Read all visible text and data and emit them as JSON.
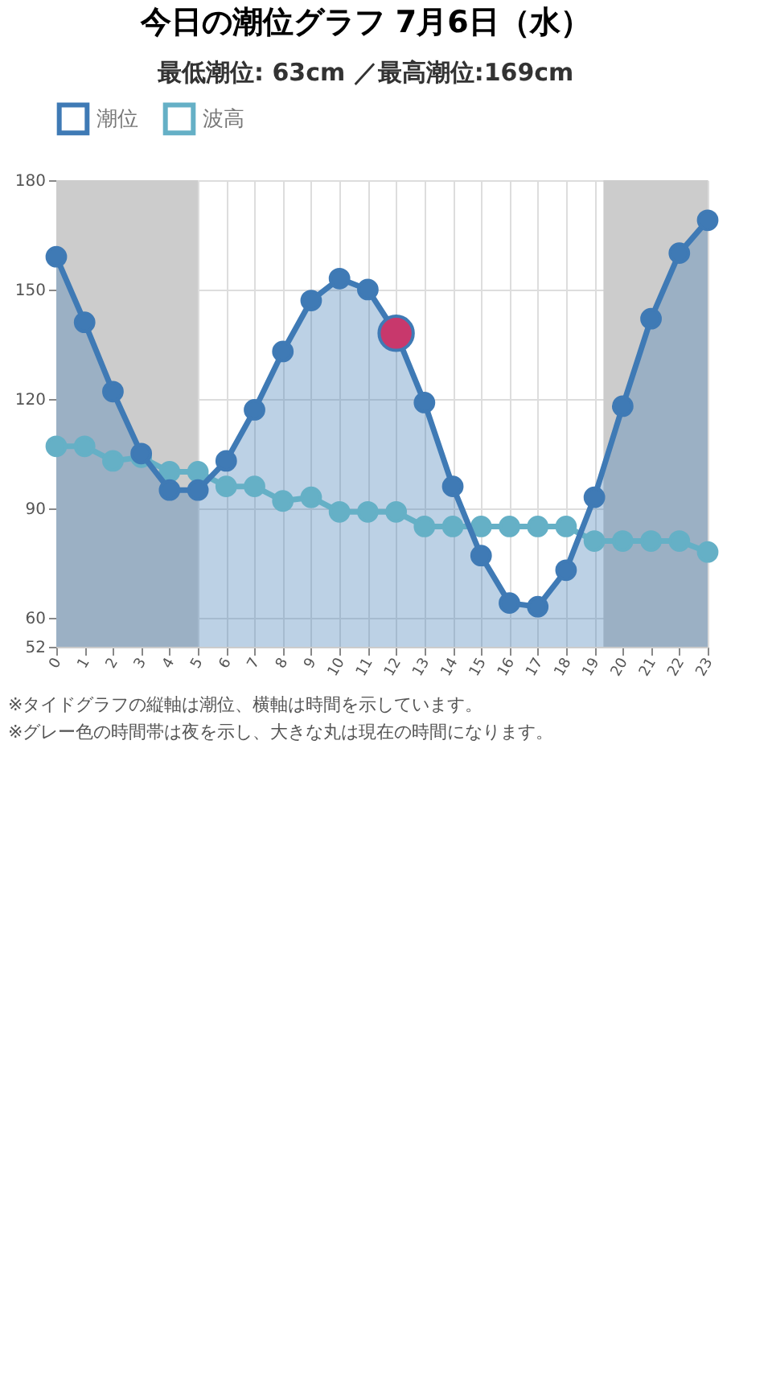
{
  "chart_data": {
    "type": "area",
    "title": "今日の潮位グラフ 7月6日（水）",
    "subtitle": "最低潮位: 63cm ／最高潮位:169cm",
    "x": [
      0,
      1,
      2,
      3,
      4,
      5,
      6,
      7,
      8,
      9,
      10,
      11,
      12,
      13,
      14,
      15,
      16,
      17,
      18,
      19,
      20,
      21,
      22,
      23
    ],
    "series": [
      {
        "name": "潮位",
        "color": "#3f7ab5",
        "values": [
          159,
          141,
          122,
          105,
          95,
          95,
          103,
          117,
          133,
          147,
          153,
          150,
          138,
          119,
          96,
          77,
          64,
          63,
          73,
          93,
          118,
          142,
          160,
          169
        ]
      },
      {
        "name": "波高",
        "type": "line",
        "color": "#65b0c6",
        "values": [
          107,
          107,
          103,
          104,
          100,
          100,
          96,
          96,
          92,
          93,
          89,
          89,
          89,
          85,
          85,
          85,
          85,
          85,
          85,
          81,
          81,
          81,
          81,
          78
        ]
      },
      {
        "type": "scatter",
        "color": "#c8386c",
        "x": [
          12
        ],
        "values": [
          138
        ]
      }
    ],
    "xlim": [
      0,
      23
    ],
    "xticks": [
      0,
      1,
      2,
      3,
      4,
      5,
      6,
      7,
      8,
      9,
      10,
      11,
      12,
      13,
      14,
      15,
      16,
      17,
      18,
      19,
      20,
      21,
      22,
      23
    ],
    "ylim": [
      52,
      180
    ],
    "yticks": [
      52,
      60,
      90,
      120,
      150,
      180
    ],
    "bands": [
      {
        "axis": "x",
        "from": 0,
        "to": 5,
        "color": "#cccccc"
      },
      {
        "axis": "x",
        "from": 19.32,
        "to": 23,
        "color": "#cccccc"
      }
    ],
    "annotations": [
      "※タイドグラフの縦軸は潮位、横軸は時間を示しています。",
      "※グレー色の時間帯は夜を示し、大きな丸は現在の時間になります。"
    ],
    "grid": true,
    "legend": "top",
    "marker": "circle",
    "line_style": "solid"
  }
}
